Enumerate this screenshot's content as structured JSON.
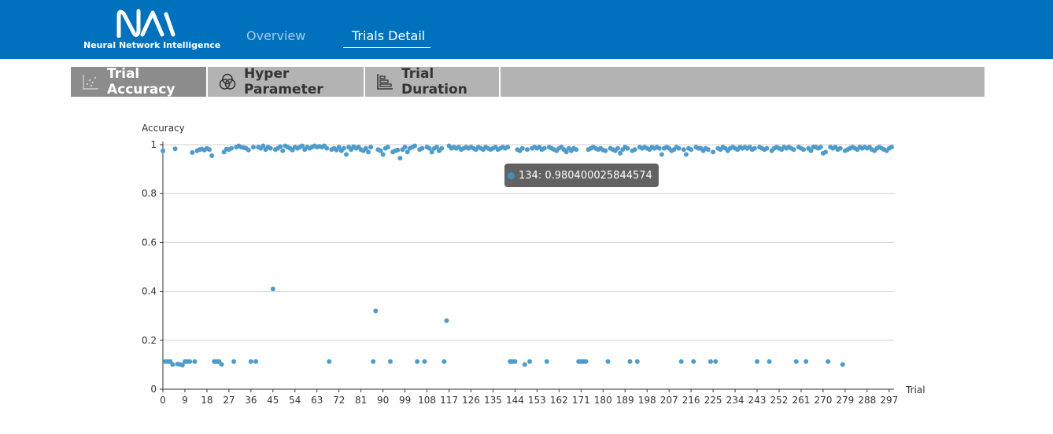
{
  "app": {
    "name": "Neural Network Intelligence",
    "nav": [
      {
        "label": "Overview",
        "active": false
      },
      {
        "label": "Trials Detail",
        "active": true
      }
    ]
  },
  "tabs": [
    {
      "label": "Trial Accuracy",
      "icon": "scatter-icon",
      "active": true
    },
    {
      "label": "Hyper Parameter",
      "icon": "venn-icon",
      "active": false
    },
    {
      "label": "Trial Duration",
      "icon": "bar-chart-icon",
      "active": false
    }
  ],
  "tooltip": {
    "text": "134: 0.980400025844574",
    "trial": 134,
    "accuracy": 0.980400025844574
  },
  "colors": {
    "header": "#0071bc",
    "point": "#4f9ccb",
    "tabbar": "#b3b3b3",
    "tab_active": "#8c8c8c"
  },
  "chart_data": {
    "type": "scatter",
    "xlabel": "Trial",
    "ylabel": "Accuracy",
    "xlim": [
      0,
      299
    ],
    "ylim": [
      0,
      1
    ],
    "grid": true,
    "x_ticks": [
      "0",
      "9",
      "18",
      "27",
      "36",
      "45",
      "54",
      "63",
      "72",
      "81",
      "90",
      "99",
      "108",
      "117",
      "126",
      "135",
      "144",
      "153",
      "162",
      "171",
      "180",
      "189",
      "198",
      "207",
      "216",
      "225",
      "234",
      "243",
      "252",
      "261",
      "270",
      "279",
      "288",
      "297"
    ],
    "y_ticks": [
      "0",
      "0.2",
      "0.4",
      "0.6",
      "0.8",
      "1"
    ],
    "series": [
      {
        "points": [
          [
            0,
            0.975
          ],
          [
            1,
            0.113
          ],
          [
            2,
            0.113
          ],
          [
            3,
            0.113
          ],
          [
            4,
            0.101
          ],
          [
            5,
            0.983
          ],
          [
            6,
            0.103
          ],
          [
            7,
            0.101
          ],
          [
            8,
            0.098
          ],
          [
            9,
            0.113
          ],
          [
            10,
            0.113
          ],
          [
            11,
            0.113
          ],
          [
            12,
            0.968
          ],
          [
            13,
            0.113
          ],
          [
            14,
            0.975
          ],
          [
            15,
            0.98
          ],
          [
            16,
            0.982
          ],
          [
            17,
            0.978
          ],
          [
            18,
            0.985
          ],
          [
            19,
            0.98
          ],
          [
            20,
            0.955
          ],
          [
            21,
            0.113
          ],
          [
            22,
            0.113
          ],
          [
            23,
            0.113
          ],
          [
            24,
            0.101
          ],
          [
            25,
            0.97
          ],
          [
            26,
            0.982
          ],
          [
            27,
            0.98
          ],
          [
            28,
            0.985
          ],
          [
            29,
            0.113
          ],
          [
            30,
            0.99
          ],
          [
            31,
            0.995
          ],
          [
            32,
            0.99
          ],
          [
            33,
            0.988
          ],
          [
            34,
            0.985
          ],
          [
            35,
            0.978
          ],
          [
            36,
            0.113
          ],
          [
            37,
            0.99
          ],
          [
            38,
            0.113
          ],
          [
            39,
            0.99
          ],
          [
            40,
            0.985
          ],
          [
            41,
            0.995
          ],
          [
            42,
            0.98
          ],
          [
            43,
            0.99
          ],
          [
            44,
            0.985
          ],
          [
            45,
            0.41
          ],
          [
            46,
            0.98
          ],
          [
            47,
            0.985
          ],
          [
            48,
            0.992
          ],
          [
            49,
            0.975
          ],
          [
            50,
            0.995
          ],
          [
            51,
            0.99
          ],
          [
            52,
            0.985
          ],
          [
            53,
            0.978
          ],
          [
            54,
            0.99
          ],
          [
            55,
            0.985
          ],
          [
            56,
            0.99
          ],
          [
            57,
            0.995
          ],
          [
            58,
            0.98
          ],
          [
            59,
            0.99
          ],
          [
            60,
            0.985
          ],
          [
            61,
            0.99
          ],
          [
            62,
            0.995
          ],
          [
            63,
            0.99
          ],
          [
            64,
            0.993
          ],
          [
            65,
            0.99
          ],
          [
            66,
            0.995
          ],
          [
            67,
            0.985
          ],
          [
            68,
            0.113
          ],
          [
            69,
            0.98
          ],
          [
            70,
            0.985
          ],
          [
            71,
            0.978
          ],
          [
            72,
            0.99
          ],
          [
            73,
            0.975
          ],
          [
            74,
            0.985
          ],
          [
            75,
            0.96
          ],
          [
            76,
            0.99
          ],
          [
            77,
            0.98
          ],
          [
            78,
            0.992
          ],
          [
            79,
            0.985
          ],
          [
            80,
            0.99
          ],
          [
            81,
            0.98
          ],
          [
            82,
            0.975
          ],
          [
            83,
            0.985
          ],
          [
            84,
            0.97
          ],
          [
            85,
            0.99
          ],
          [
            86,
            0.113
          ],
          [
            87,
            0.32
          ],
          [
            88,
            0.98
          ],
          [
            89,
            0.975
          ],
          [
            90,
            0.96
          ],
          [
            91,
            0.985
          ],
          [
            92,
            0.99
          ],
          [
            93,
            0.113
          ],
          [
            94,
            0.97
          ],
          [
            95,
            0.975
          ],
          [
            96,
            0.978
          ],
          [
            97,
            0.945
          ],
          [
            98,
            0.98
          ],
          [
            99,
            0.99
          ],
          [
            100,
            0.97
          ],
          [
            101,
            0.985
          ],
          [
            102,
            0.99
          ],
          [
            103,
            0.995
          ],
          [
            104,
            0.113
          ],
          [
            105,
            0.98
          ],
          [
            106,
            0.985
          ],
          [
            107,
            0.113
          ],
          [
            108,
            0.99
          ],
          [
            109,
            0.985
          ],
          [
            110,
            0.97
          ],
          [
            111,
            0.985
          ],
          [
            112,
            0.99
          ],
          [
            113,
            0.975
          ],
          [
            114,
            0.985
          ],
          [
            115,
            0.113
          ],
          [
            116,
            0.28
          ],
          [
            117,
            0.995
          ],
          [
            118,
            0.985
          ],
          [
            119,
            0.99
          ],
          [
            120,
            0.985
          ],
          [
            121,
            0.99
          ],
          [
            122,
            0.98
          ],
          [
            123,
            0.985
          ],
          [
            124,
            0.99
          ],
          [
            125,
            0.985
          ],
          [
            126,
            0.99
          ],
          [
            127,
            0.985
          ],
          [
            128,
            0.98
          ],
          [
            129,
            0.99
          ],
          [
            130,
            0.985
          ],
          [
            131,
            0.98
          ],
          [
            132,
            0.99
          ],
          [
            133,
            0.985
          ],
          [
            134,
            0.9804
          ],
          [
            135,
            0.985
          ],
          [
            136,
            0.99
          ],
          [
            137,
            0.98
          ],
          [
            138,
            0.985
          ],
          [
            139,
            0.99
          ],
          [
            140,
            0.985
          ],
          [
            141,
            0.99
          ],
          [
            142,
            0.113
          ],
          [
            143,
            0.113
          ],
          [
            144,
            0.113
          ],
          [
            145,
            0.98
          ],
          [
            146,
            0.975
          ],
          [
            147,
            0.985
          ],
          [
            148,
            0.101
          ],
          [
            149,
            0.98
          ],
          [
            150,
            0.113
          ],
          [
            151,
            0.985
          ],
          [
            152,
            0.99
          ],
          [
            153,
            0.985
          ],
          [
            154,
            0.99
          ],
          [
            155,
            0.98
          ],
          [
            156,
            0.985
          ],
          [
            157,
            0.113
          ],
          [
            158,
            0.99
          ],
          [
            159,
            0.985
          ],
          [
            160,
            0.98
          ],
          [
            161,
            0.975
          ],
          [
            162,
            0.985
          ],
          [
            163,
            0.99
          ],
          [
            164,
            0.98
          ],
          [
            165,
            0.97
          ],
          [
            166,
            0.985
          ],
          [
            167,
            0.975
          ],
          [
            168,
            0.985
          ],
          [
            169,
            0.98
          ],
          [
            170,
            0.113
          ],
          [
            171,
            0.113
          ],
          [
            172,
            0.113
          ],
          [
            173,
            0.113
          ],
          [
            174,
            0.98
          ],
          [
            175,
            0.985
          ],
          [
            176,
            0.99
          ],
          [
            177,
            0.985
          ],
          [
            178,
            0.98
          ],
          [
            179,
            0.985
          ],
          [
            180,
            0.978
          ],
          [
            181,
            0.975
          ],
          [
            182,
            0.113
          ],
          [
            183,
            0.985
          ],
          [
            184,
            0.98
          ],
          [
            185,
            0.975
          ],
          [
            186,
            0.985
          ],
          [
            187,
            0.965
          ],
          [
            188,
            0.98
          ],
          [
            189,
            0.99
          ],
          [
            190,
            0.985
          ],
          [
            191,
            0.113
          ],
          [
            192,
            0.975
          ],
          [
            193,
            0.98
          ],
          [
            194,
            0.113
          ],
          [
            195,
            0.99
          ],
          [
            196,
            0.985
          ],
          [
            197,
            0.99
          ],
          [
            198,
            0.985
          ],
          [
            199,
            0.98
          ],
          [
            200,
            0.99
          ],
          [
            201,
            0.985
          ],
          [
            202,
            0.99
          ],
          [
            203,
            0.985
          ],
          [
            204,
            0.96
          ],
          [
            205,
            0.985
          ],
          [
            206,
            0.99
          ],
          [
            207,
            0.985
          ],
          [
            208,
            0.975
          ],
          [
            209,
            0.98
          ],
          [
            210,
            0.99
          ],
          [
            211,
            0.985
          ],
          [
            212,
            0.113
          ],
          [
            213,
            0.98
          ],
          [
            214,
            0.96
          ],
          [
            215,
            0.985
          ],
          [
            216,
            0.98
          ],
          [
            217,
            0.113
          ],
          [
            218,
            0.99
          ],
          [
            219,
            0.985
          ],
          [
            220,
            0.985
          ],
          [
            221,
            0.975
          ],
          [
            222,
            0.985
          ],
          [
            223,
            0.98
          ],
          [
            224,
            0.113
          ],
          [
            225,
            0.97
          ],
          [
            226,
            0.113
          ],
          [
            227,
            0.985
          ],
          [
            228,
            0.98
          ],
          [
            229,
            0.99
          ],
          [
            230,
            0.985
          ],
          [
            231,
            0.975
          ],
          [
            232,
            0.985
          ],
          [
            233,
            0.99
          ],
          [
            234,
            0.985
          ],
          [
            235,
            0.98
          ],
          [
            236,
            0.99
          ],
          [
            237,
            0.985
          ],
          [
            238,
            0.99
          ],
          [
            239,
            0.985
          ],
          [
            240,
            0.99
          ],
          [
            241,
            0.98
          ],
          [
            242,
            0.985
          ],
          [
            243,
            0.113
          ],
          [
            244,
            0.99
          ],
          [
            245,
            0.985
          ],
          [
            246,
            0.98
          ],
          [
            247,
            0.985
          ],
          [
            248,
            0.113
          ],
          [
            249,
            0.975
          ],
          [
            250,
            0.985
          ],
          [
            251,
            0.99
          ],
          [
            252,
            0.985
          ],
          [
            253,
            0.98
          ],
          [
            254,
            0.99
          ],
          [
            255,
            0.985
          ],
          [
            256,
            0.99
          ],
          [
            257,
            0.985
          ],
          [
            258,
            0.98
          ],
          [
            259,
            0.113
          ],
          [
            260,
            0.99
          ],
          [
            261,
            0.985
          ],
          [
            262,
            0.98
          ],
          [
            263,
            0.113
          ],
          [
            264,
            0.985
          ],
          [
            265,
            0.975
          ],
          [
            266,
            0.99
          ],
          [
            267,
            0.99
          ],
          [
            268,
            0.985
          ],
          [
            269,
            0.99
          ],
          [
            270,
            0.965
          ],
          [
            271,
            0.97
          ],
          [
            272,
            0.113
          ],
          [
            273,
            0.99
          ],
          [
            274,
            0.985
          ],
          [
            275,
            0.99
          ],
          [
            276,
            0.98
          ],
          [
            277,
            0.985
          ],
          [
            278,
            0.101
          ],
          [
            279,
            0.975
          ],
          [
            280,
            0.98
          ],
          [
            281,
            0.985
          ],
          [
            282,
            0.99
          ],
          [
            283,
            0.985
          ],
          [
            284,
            0.98
          ],
          [
            285,
            0.99
          ],
          [
            286,
            0.985
          ],
          [
            287,
            0.99
          ],
          [
            288,
            0.985
          ],
          [
            289,
            0.99
          ],
          [
            290,
            0.98
          ],
          [
            291,
            0.975
          ],
          [
            292,
            0.985
          ],
          [
            293,
            0.99
          ],
          [
            294,
            0.985
          ],
          [
            295,
            0.98
          ],
          [
            296,
            0.975
          ],
          [
            297,
            0.985
          ],
          [
            298,
            0.99
          ]
        ]
      }
    ]
  }
}
